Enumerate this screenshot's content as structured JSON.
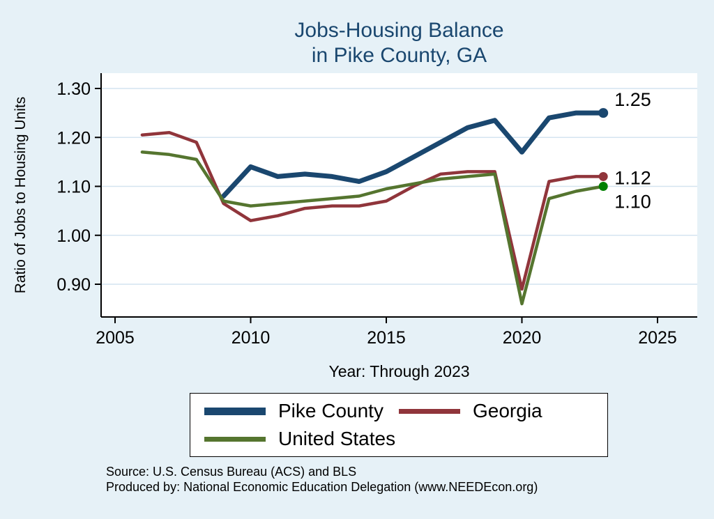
{
  "page": {
    "background": "#e6f1f7"
  },
  "title": {
    "line1": "Jobs-Housing Balance",
    "line2": "in Pike County, GA",
    "color": "#1a476f"
  },
  "chart_data": {
    "type": "line",
    "title": "Jobs-Housing Balance in Pike County, GA",
    "xlabel": "Year: Through 2023",
    "ylabel": "Ratio of Jobs to Housing Units",
    "xlim": [
      2005,
      2025
    ],
    "ylim": [
      0.9,
      1.3
    ],
    "x_ticks": [
      2005,
      2010,
      2015,
      2020,
      2025
    ],
    "y_ticks": [
      1.3,
      1.2,
      1.1,
      1.0,
      0.9
    ],
    "grid": "horizontal",
    "legend_position": "bottom",
    "x": [
      2006,
      2007,
      2008,
      2009,
      2010,
      2011,
      2012,
      2013,
      2014,
      2015,
      2016,
      2017,
      2018,
      2019,
      2020,
      2021,
      2022,
      2023
    ],
    "series": [
      {
        "name": "Pike County",
        "color": "#1a476f",
        "marker_color": "#1a476f",
        "line_width": 7,
        "end_label": "1.25",
        "values": [
          null,
          null,
          null,
          1.08,
          1.14,
          1.12,
          1.125,
          1.12,
          1.11,
          1.13,
          1.16,
          1.19,
          1.22,
          1.235,
          1.17,
          1.24,
          1.25,
          1.25
        ]
      },
      {
        "name": "Georgia",
        "color": "#90353b",
        "marker_color": "#90353b",
        "line_width": 4.5,
        "end_label": "1.12",
        "values": [
          1.205,
          1.21,
          1.19,
          1.065,
          1.03,
          1.04,
          1.055,
          1.06,
          1.06,
          1.07,
          1.1,
          1.125,
          1.13,
          1.13,
          0.89,
          1.11,
          1.12,
          1.12
        ]
      },
      {
        "name": "United States",
        "color": "#55752f",
        "marker_color": "#008000",
        "line_width": 4.5,
        "end_label": "1.10",
        "values": [
          1.17,
          1.165,
          1.155,
          1.07,
          1.06,
          1.065,
          1.07,
          1.075,
          1.08,
          1.095,
          1.105,
          1.115,
          1.12,
          1.125,
          0.86,
          1.075,
          1.09,
          1.1
        ]
      }
    ]
  },
  "source": {
    "line1": "Source: U.S. Census Bureau (ACS) and BLS",
    "line2": "Produced by: National Economic Education Delegation (www.NEEDEcon.org)"
  }
}
